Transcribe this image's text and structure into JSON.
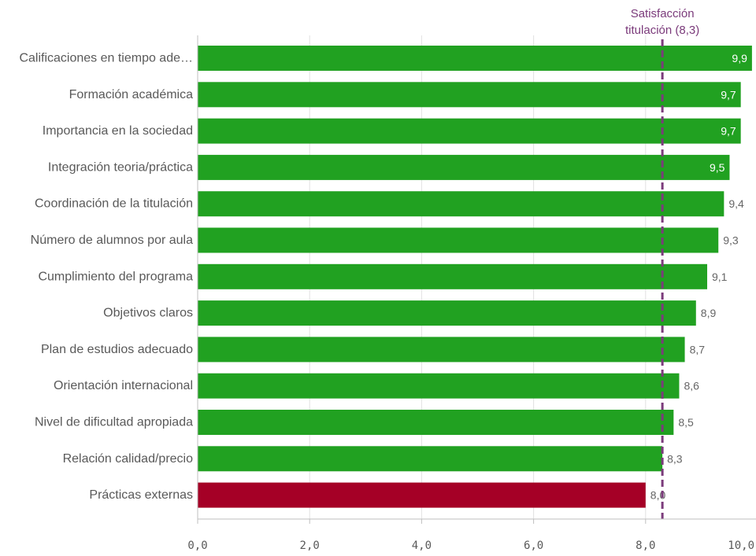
{
  "chart_data": {
    "type": "bar",
    "orientation": "horizontal",
    "title": "",
    "xlabel": "",
    "ylabel": "",
    "xlim": [
      0,
      10
    ],
    "grid": true,
    "legend": "none",
    "categories": [
      "Calificaciones en tiempo ade…",
      "Formación académica",
      "Importancia en la sociedad",
      "Integración teoria/práctica",
      "Coordinación de la titulación",
      "Número de alumnos por aula",
      "Cumplimiento del programa",
      "Objetivos claros",
      "Plan de estudios adecuado",
      "Orientación internacional",
      "Nivel de dificultad apropiada",
      "Relación calidad/precio",
      "Prácticas externas"
    ],
    "values": [
      9.9,
      9.7,
      9.7,
      9.5,
      9.4,
      9.3,
      9.1,
      8.9,
      8.7,
      8.6,
      8.5,
      8.3,
      8.0
    ],
    "value_labels": [
      "9,9",
      "9,7",
      "9,7",
      "9,5",
      "9,4",
      "9,3",
      "9,1",
      "8,9",
      "8,7",
      "8,6",
      "8,5",
      "8,3",
      "8,0"
    ],
    "x_ticks": [
      0,
      2,
      4,
      6,
      8,
      10
    ],
    "x_tick_labels": [
      "0,0",
      "2,0",
      "4,0",
      "6,0",
      "8,0",
      "10,0"
    ],
    "reference_line": {
      "value": 8.3,
      "label_line1": "Satisfacción",
      "label_line2": "titulación (8,3)",
      "color": "#7b3b7b"
    },
    "colors": {
      "above": "#21a121",
      "below": "#a50026",
      "label_inside": "#ffffff",
      "label_outside": "#666666",
      "grid": "#e2e2e2",
      "axis": "#bfbfbf"
    }
  }
}
